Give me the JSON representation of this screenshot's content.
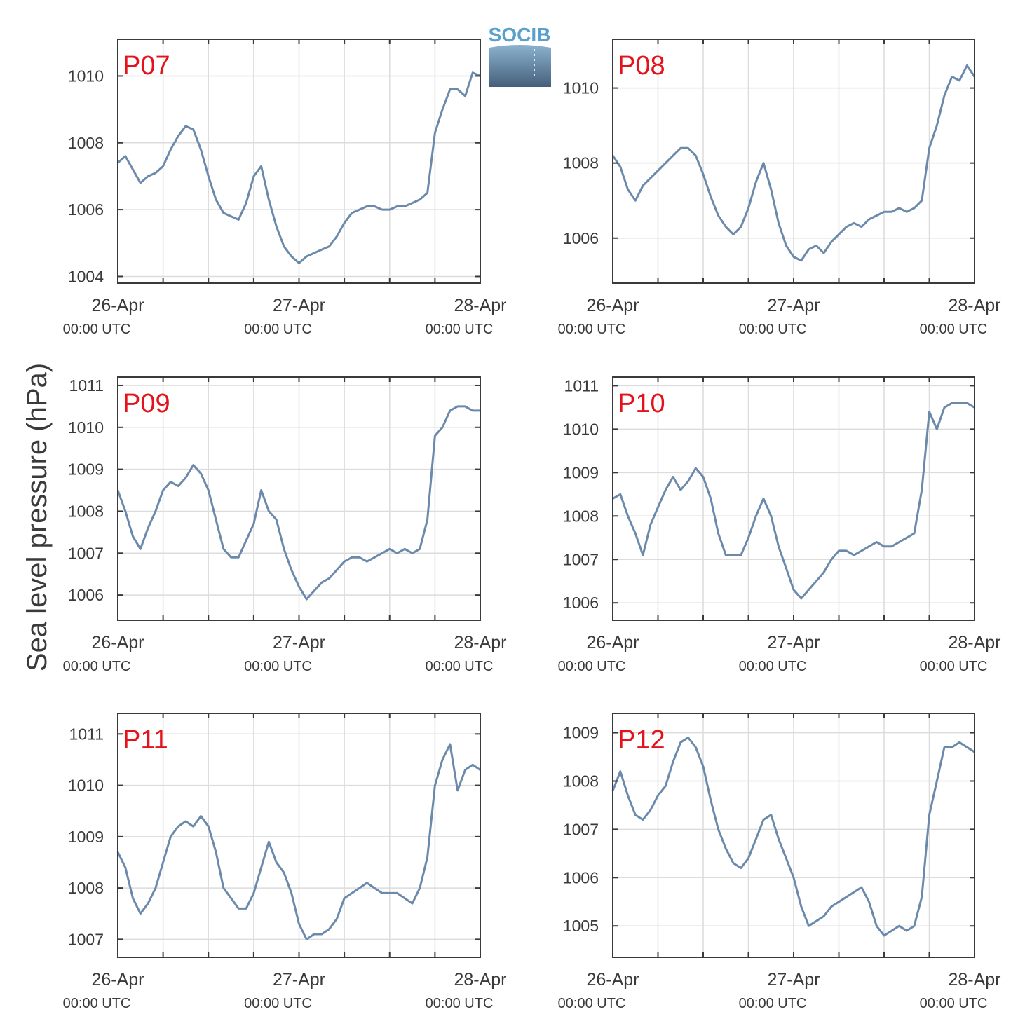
{
  "figure": {
    "ylabel": "Sea level pressure (hPa)",
    "logo_text": "SOCIB",
    "line_color": "#6b8aab",
    "title_color": "#e3121b",
    "grid_color": "#dcdcdc",
    "axis_color": "#3a3a3a"
  },
  "chart_data": [
    {
      "type": "line",
      "title": "P07",
      "ylabel": "Sea level pressure (hPa)",
      "xlim": [
        "2014-04-26T00:00",
        "2014-04-28T00:00"
      ],
      "xticks": [
        {
          "label": "26-Apr",
          "sub": "00:00 UTC"
        },
        {
          "label": "27-Apr",
          "sub": "00:00 UTC"
        },
        {
          "label": "28-Apr",
          "sub": "00:00 UTC"
        }
      ],
      "ylim": [
        1003.8,
        1011.1
      ],
      "yticks": [
        1004,
        1006,
        1008,
        1010
      ],
      "grid": true,
      "x_hours": [
        0,
        1,
        2,
        3,
        4,
        5,
        6,
        7,
        8,
        9,
        10,
        11,
        12,
        13,
        14,
        15,
        16,
        17,
        18,
        19,
        20,
        21,
        22,
        23,
        24,
        25,
        26,
        27,
        28,
        29,
        30,
        31,
        32,
        33,
        34,
        35,
        36,
        37,
        38,
        39,
        40,
        41,
        42,
        43,
        44,
        45,
        46,
        47,
        48
      ],
      "values": [
        1007.4,
        1007.6,
        1007.2,
        1006.8,
        1007.0,
        1007.1,
        1007.3,
        1007.8,
        1008.2,
        1008.5,
        1008.4,
        1007.8,
        1007.0,
        1006.3,
        1005.9,
        1005.8,
        1005.7,
        1006.2,
        1007.0,
        1007.3,
        1006.3,
        1005.5,
        1004.9,
        1004.6,
        1004.4,
        1004.6,
        1004.7,
        1004.8,
        1004.9,
        1005.2,
        1005.6,
        1005.9,
        1006.0,
        1006.1,
        1006.1,
        1006.0,
        1006.0,
        1006.1,
        1006.1,
        1006.2,
        1006.3,
        1006.5,
        1008.3,
        1009.0,
        1009.6,
        1009.6,
        1009.4,
        1010.1,
        1010.0
      ]
    },
    {
      "type": "line",
      "title": "P08",
      "ylabel": "",
      "xlim": [
        "2014-04-26T00:00",
        "2014-04-28T00:00"
      ],
      "xticks": [
        {
          "label": "26-Apr",
          "sub": "00:00 UTC"
        },
        {
          "label": "27-Apr",
          "sub": "00:00 UTC"
        },
        {
          "label": "28-Apr",
          "sub": "00:00 UTC"
        }
      ],
      "ylim": [
        1004.8,
        1011.3
      ],
      "yticks": [
        1006,
        1008,
        1010
      ],
      "grid": true,
      "x_hours": [
        0,
        1,
        2,
        3,
        4,
        5,
        6,
        7,
        8,
        9,
        10,
        11,
        12,
        13,
        14,
        15,
        16,
        17,
        18,
        19,
        20,
        21,
        22,
        23,
        24,
        25,
        26,
        27,
        28,
        29,
        30,
        31,
        32,
        33,
        34,
        35,
        36,
        37,
        38,
        39,
        40,
        41,
        42,
        43,
        44,
        45,
        46,
        47,
        48
      ],
      "values": [
        1008.2,
        1007.9,
        1007.3,
        1007.0,
        1007.4,
        1007.6,
        1007.8,
        1008.0,
        1008.2,
        1008.4,
        1008.4,
        1008.2,
        1007.7,
        1007.1,
        1006.6,
        1006.3,
        1006.1,
        1006.3,
        1006.8,
        1007.5,
        1008.0,
        1007.3,
        1006.4,
        1005.8,
        1005.5,
        1005.4,
        1005.7,
        1005.8,
        1005.6,
        1005.9,
        1006.1,
        1006.3,
        1006.4,
        1006.3,
        1006.5,
        1006.6,
        1006.7,
        1006.7,
        1006.8,
        1006.7,
        1006.8,
        1007.0,
        1008.4,
        1009.0,
        1009.8,
        1010.3,
        1010.2,
        1010.6,
        1010.3
      ]
    },
    {
      "type": "line",
      "title": "P09",
      "ylabel": "",
      "xlim": [
        "2014-04-26T00:00",
        "2014-04-28T00:00"
      ],
      "xticks": [
        {
          "label": "26-Apr",
          "sub": "00:00 UTC"
        },
        {
          "label": "27-Apr",
          "sub": "00:00 UTC"
        },
        {
          "label": "28-Apr",
          "sub": "00:00 UTC"
        }
      ],
      "ylim": [
        1005.4,
        1011.2
      ],
      "yticks": [
        1006,
        1007,
        1008,
        1009,
        1010,
        1011
      ],
      "grid": true,
      "x_hours": [
        0,
        1,
        2,
        3,
        4,
        5,
        6,
        7,
        8,
        9,
        10,
        11,
        12,
        13,
        14,
        15,
        16,
        17,
        18,
        19,
        20,
        21,
        22,
        23,
        24,
        25,
        26,
        27,
        28,
        29,
        30,
        31,
        32,
        33,
        34,
        35,
        36,
        37,
        38,
        39,
        40,
        41,
        42,
        43,
        44,
        45,
        46,
        47,
        48
      ],
      "values": [
        1008.5,
        1008.0,
        1007.4,
        1007.1,
        1007.6,
        1008.0,
        1008.5,
        1008.7,
        1008.6,
        1008.8,
        1009.1,
        1008.9,
        1008.5,
        1007.8,
        1007.1,
        1006.9,
        1006.9,
        1007.3,
        1007.7,
        1008.5,
        1008.0,
        1007.8,
        1007.1,
        1006.6,
        1006.2,
        1005.9,
        1006.1,
        1006.3,
        1006.4,
        1006.6,
        1006.8,
        1006.9,
        1006.9,
        1006.8,
        1006.9,
        1007.0,
        1007.1,
        1007.0,
        1007.1,
        1007.0,
        1007.1,
        1007.8,
        1009.8,
        1010.0,
        1010.4,
        1010.5,
        1010.5,
        1010.4,
        1010.4
      ]
    },
    {
      "type": "line",
      "title": "P10",
      "ylabel": "",
      "xlim": [
        "2014-04-26T00:00",
        "2014-04-28T00:00"
      ],
      "xticks": [
        {
          "label": "26-Apr",
          "sub": "00:00 UTC"
        },
        {
          "label": "27-Apr",
          "sub": "00:00 UTC"
        },
        {
          "label": "28-Apr",
          "sub": "00:00 UTC"
        }
      ],
      "ylim": [
        1005.6,
        1011.2
      ],
      "yticks": [
        1006,
        1007,
        1008,
        1009,
        1010,
        1011
      ],
      "grid": true,
      "x_hours": [
        0,
        1,
        2,
        3,
        4,
        5,
        6,
        7,
        8,
        9,
        10,
        11,
        12,
        13,
        14,
        15,
        16,
        17,
        18,
        19,
        20,
        21,
        22,
        23,
        24,
        25,
        26,
        27,
        28,
        29,
        30,
        31,
        32,
        33,
        34,
        35,
        36,
        37,
        38,
        39,
        40,
        41,
        42,
        43,
        44,
        45,
        46,
        47,
        48
      ],
      "values": [
        1008.4,
        1008.5,
        1008.0,
        1007.6,
        1007.1,
        1007.8,
        1008.2,
        1008.6,
        1008.9,
        1008.6,
        1008.8,
        1009.1,
        1008.9,
        1008.4,
        1007.6,
        1007.1,
        1007.1,
        1007.1,
        1007.5,
        1008.0,
        1008.4,
        1008.0,
        1007.3,
        1006.8,
        1006.3,
        1006.1,
        1006.3,
        1006.5,
        1006.7,
        1007.0,
        1007.2,
        1007.2,
        1007.1,
        1007.2,
        1007.3,
        1007.4,
        1007.3,
        1007.3,
        1007.4,
        1007.5,
        1007.6,
        1008.6,
        1010.4,
        1010.0,
        1010.5,
        1010.6,
        1010.6,
        1010.6,
        1010.5
      ]
    },
    {
      "type": "line",
      "title": "P11",
      "ylabel": "",
      "xlim": [
        "2014-04-26T00:00",
        "2014-04-28T00:00"
      ],
      "xticks": [
        {
          "label": "26-Apr",
          "sub": "00:00 UTC"
        },
        {
          "label": "27-Apr",
          "sub": "00:00 UTC"
        },
        {
          "label": "28-Apr",
          "sub": "00:00 UTC"
        }
      ],
      "ylim": [
        1006.65,
        1011.4
      ],
      "yticks": [
        1007,
        1008,
        1009,
        1010,
        1011
      ],
      "grid": true,
      "x_hours": [
        0,
        1,
        2,
        3,
        4,
        5,
        6,
        7,
        8,
        9,
        10,
        11,
        12,
        13,
        14,
        15,
        16,
        17,
        18,
        19,
        20,
        21,
        22,
        23,
        24,
        25,
        26,
        27,
        28,
        29,
        30,
        31,
        32,
        33,
        34,
        35,
        36,
        37,
        38,
        39,
        40,
        41,
        42,
        43,
        44,
        45,
        46,
        47,
        48
      ],
      "values": [
        1008.7,
        1008.4,
        1007.8,
        1007.5,
        1007.7,
        1008.0,
        1008.5,
        1009.0,
        1009.2,
        1009.3,
        1009.2,
        1009.4,
        1009.2,
        1008.7,
        1008.0,
        1007.8,
        1007.6,
        1007.6,
        1007.9,
        1008.4,
        1008.9,
        1008.5,
        1008.3,
        1007.9,
        1007.3,
        1007.0,
        1007.1,
        1007.1,
        1007.2,
        1007.4,
        1007.8,
        1007.9,
        1008.0,
        1008.1,
        1008.0,
        1007.9,
        1007.9,
        1007.9,
        1007.8,
        1007.7,
        1008.0,
        1008.6,
        1010.0,
        1010.5,
        1010.8,
        1009.9,
        1010.3,
        1010.4,
        1010.3
      ]
    },
    {
      "type": "line",
      "title": "P12",
      "ylabel": "",
      "xlim": [
        "2014-04-26T00:00",
        "2014-04-28T00:00"
      ],
      "xticks": [
        {
          "label": "26-Apr",
          "sub": "00:00 UTC"
        },
        {
          "label": "27-Apr",
          "sub": "00:00 UTC"
        },
        {
          "label": "28-Apr",
          "sub": "00:00 UTC"
        }
      ],
      "ylim": [
        1004.35,
        1009.4
      ],
      "yticks": [
        1005,
        1006,
        1007,
        1008,
        1009
      ],
      "grid": true,
      "x_hours": [
        0,
        1,
        2,
        3,
        4,
        5,
        6,
        7,
        8,
        9,
        10,
        11,
        12,
        13,
        14,
        15,
        16,
        17,
        18,
        19,
        20,
        21,
        22,
        23,
        24,
        25,
        26,
        27,
        28,
        29,
        30,
        31,
        32,
        33,
        34,
        35,
        36,
        37,
        38,
        39,
        40,
        41,
        42,
        43,
        44,
        45,
        46,
        47,
        48
      ],
      "values": [
        1007.8,
        1008.2,
        1007.7,
        1007.3,
        1007.2,
        1007.4,
        1007.7,
        1007.9,
        1008.4,
        1008.8,
        1008.9,
        1008.7,
        1008.3,
        1007.6,
        1007.0,
        1006.6,
        1006.3,
        1006.2,
        1006.4,
        1006.8,
        1007.2,
        1007.3,
        1006.8,
        1006.4,
        1006.0,
        1005.4,
        1005.0,
        1005.1,
        1005.2,
        1005.4,
        1005.5,
        1005.6,
        1005.7,
        1005.8,
        1005.5,
        1005.0,
        1004.8,
        1004.9,
        1005.0,
        1004.9,
        1005.0,
        1005.6,
        1007.3,
        1008.0,
        1008.7,
        1008.7,
        1008.8,
        1008.7,
        1008.6
      ]
    }
  ]
}
